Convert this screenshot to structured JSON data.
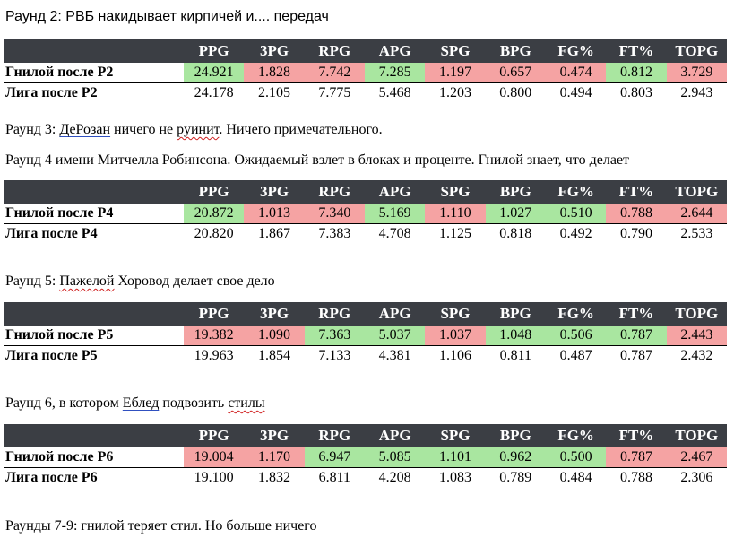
{
  "headers": [
    "",
    "PPG",
    "3PG",
    "RPG",
    "APG",
    "SPG",
    "BPG",
    "FG%",
    "FT%",
    "TOPG"
  ],
  "colors": {
    "good": "#a9e6a0",
    "bad": "#f5a3a3",
    "header": "#3b3e44"
  },
  "round2": {
    "title": "Раунд 2: РВБ накидывает кирпичей и.... передач",
    "team": {
      "label": "Гнилой после Р2",
      "values": [
        "24.921",
        "1.828",
        "7.742",
        "7.285",
        "1.197",
        "0.657",
        "0.474",
        "0.812",
        "3.729"
      ],
      "status": [
        "good",
        "bad",
        "bad",
        "good",
        "bad",
        "bad",
        "bad",
        "good",
        "bad"
      ]
    },
    "league": {
      "label": "Лига после Р2",
      "values": [
        "24.178",
        "2.105",
        "7.775",
        "5.468",
        "1.203",
        "0.800",
        "0.494",
        "0.803",
        "2.943"
      ]
    }
  },
  "round3": {
    "text_a": "Раунд 3: ",
    "text_b": "ДеРозан",
    "text_c": " ничего не ",
    "text_d": "руинит",
    "text_e": ". Ничего примечательного."
  },
  "round4": {
    "title": "Раунд 4 имени Митчелла Робинсона. Ожидаемый взлет в блоках и проценте. Гнилой знает, что делает",
    "team": {
      "label": "Гнилой после Р4",
      "values": [
        "20.872",
        "1.013",
        "7.340",
        "5.169",
        "1.110",
        "1.027",
        "0.510",
        "0.788",
        "2.644"
      ],
      "status": [
        "good",
        "bad",
        "bad",
        "good",
        "bad",
        "good",
        "good",
        "bad",
        "bad"
      ]
    },
    "league": {
      "label": "Лига после Р4",
      "values": [
        "20.820",
        "1.867",
        "7.383",
        "4.708",
        "1.125",
        "0.818",
        "0.492",
        "0.790",
        "2.533"
      ]
    }
  },
  "round5": {
    "text_a": "Раунд 5: ",
    "text_b": "Пажелой",
    "text_c": " Хоровод делает свое дело",
    "team": {
      "label": "Гнилой после Р5",
      "values": [
        "19.382",
        "1.090",
        "7.363",
        "5.037",
        "1.037",
        "1.048",
        "0.506",
        "0.787",
        "2.443"
      ],
      "status": [
        "bad",
        "bad",
        "good",
        "good",
        "bad",
        "good",
        "good",
        "good",
        "bad"
      ]
    },
    "league": {
      "label": "Лига после Р5",
      "values": [
        "19.963",
        "1.854",
        "7.133",
        "4.381",
        "1.106",
        "0.811",
        "0.487",
        "0.787",
        "2.432"
      ]
    }
  },
  "round6": {
    "text_a": "Раунд 6, в котором ",
    "text_b": "Еблед",
    "text_c": " подвозить ",
    "text_d": "стилы",
    "team": {
      "label": "Гнилой после Р6",
      "values": [
        "19.004",
        "1.170",
        "6.947",
        "5.085",
        "1.101",
        "0.962",
        "0.500",
        "0.787",
        "2.467"
      ],
      "status": [
        "bad",
        "bad",
        "good",
        "good",
        "good",
        "good",
        "good",
        "bad",
        "bad"
      ]
    },
    "league": {
      "label": "Лига после Р6",
      "values": [
        "19.100",
        "1.832",
        "6.811",
        "4.208",
        "1.083",
        "0.789",
        "0.484",
        "0.788",
        "2.306"
      ]
    }
  },
  "round79": {
    "title": "Раунды 7-9: гнилой теряет стил. Но больше ничего"
  }
}
